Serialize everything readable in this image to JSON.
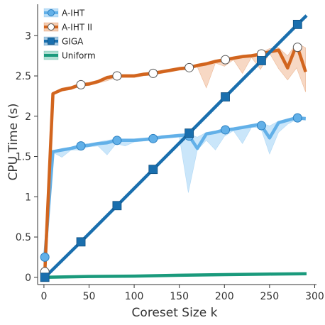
{
  "chart_data": {
    "type": "line",
    "xlabel": "Coreset Size k",
    "ylabel": "CPU Time (s)",
    "xlim": [
      -7,
      302
    ],
    "ylim": [
      -0.09,
      3.39
    ],
    "xticks": [
      0,
      50,
      100,
      150,
      200,
      250,
      300
    ],
    "xtick_labels": [
      "0",
      "50",
      "100",
      "150",
      "200",
      "250",
      "300"
    ],
    "yticks": [
      0,
      0.5,
      1,
      1.5,
      2,
      2.5,
      3
    ],
    "ytick_labels": [
      "0",
      "0.5",
      "1",
      "1.5",
      "2",
      "2.5",
      "3"
    ],
    "grid": false,
    "legend_position": "top-left",
    "series": [
      {
        "name": "A-IHT",
        "color": "#62b0e8",
        "band_color": "#9fd2f5",
        "marker": "circle-filled",
        "x": [
          1,
          10,
          20,
          30,
          40,
          50,
          60,
          70,
          80,
          90,
          100,
          110,
          120,
          130,
          140,
          150,
          160,
          170,
          180,
          190,
          200,
          210,
          220,
          230,
          240,
          250,
          260,
          270,
          280,
          290
        ],
        "y": [
          0.25,
          1.56,
          1.58,
          1.6,
          1.63,
          1.64,
          1.66,
          1.67,
          1.7,
          1.7,
          1.7,
          1.71,
          1.72,
          1.74,
          1.75,
          1.76,
          1.77,
          1.6,
          1.78,
          1.8,
          1.83,
          1.84,
          1.86,
          1.88,
          1.9,
          1.73,
          1.92,
          1.95,
          1.98,
          1.97
        ],
        "lower": [
          0.25,
          1.55,
          1.49,
          1.58,
          1.58,
          1.62,
          1.63,
          1.52,
          1.66,
          1.63,
          1.68,
          1.69,
          1.7,
          1.72,
          1.73,
          1.74,
          1.05,
          1.58,
          1.7,
          1.58,
          1.75,
          1.82,
          1.66,
          1.86,
          1.86,
          1.53,
          1.8,
          1.9,
          1.96,
          1.95
        ],
        "upper": [
          0.26,
          1.57,
          1.6,
          1.62,
          1.65,
          1.66,
          1.68,
          1.7,
          1.72,
          1.72,
          1.72,
          1.73,
          1.74,
          1.76,
          1.77,
          1.78,
          1.78,
          1.74,
          1.8,
          1.82,
          1.85,
          1.86,
          1.88,
          1.9,
          1.92,
          1.88,
          1.94,
          1.97,
          2.0,
          1.99
        ],
        "marker_x": [
          1,
          41,
          81,
          121,
          161,
          201,
          241,
          281
        ]
      },
      {
        "name": "A-IHT II",
        "color": "#d2651e",
        "band_color": "#f0b893",
        "marker": "circle-open",
        "x": [
          1,
          10,
          20,
          30,
          40,
          50,
          60,
          70,
          80,
          90,
          100,
          110,
          120,
          130,
          140,
          150,
          160,
          170,
          180,
          190,
          200,
          210,
          220,
          230,
          240,
          250,
          260,
          270,
          280,
          290
        ],
        "y": [
          0.07,
          2.28,
          2.33,
          2.35,
          2.39,
          2.4,
          2.43,
          2.48,
          2.5,
          2.5,
          2.5,
          2.52,
          2.53,
          2.55,
          2.57,
          2.59,
          2.6,
          2.63,
          2.65,
          2.68,
          2.7,
          2.72,
          2.74,
          2.75,
          2.77,
          2.8,
          2.82,
          2.6,
          2.89,
          2.55
        ],
        "lower": [
          0.07,
          2.27,
          2.31,
          2.33,
          2.37,
          2.38,
          2.41,
          2.44,
          2.48,
          2.48,
          2.48,
          2.5,
          2.51,
          2.53,
          2.55,
          2.57,
          2.58,
          2.61,
          2.35,
          2.66,
          2.62,
          2.7,
          2.53,
          2.73,
          2.58,
          2.78,
          2.59,
          2.45,
          2.6,
          2.3
        ],
        "upper": [
          0.08,
          2.29,
          2.35,
          2.37,
          2.41,
          2.42,
          2.45,
          2.5,
          2.52,
          2.52,
          2.52,
          2.54,
          2.55,
          2.57,
          2.59,
          2.61,
          2.62,
          2.65,
          2.67,
          2.7,
          2.72,
          2.74,
          2.76,
          2.77,
          2.79,
          2.84,
          2.85,
          2.75,
          2.91,
          2.85
        ],
        "marker_x": [
          1,
          41,
          81,
          121,
          161,
          201,
          241,
          281
        ]
      },
      {
        "name": "GIGA",
        "color": "#1a6fae",
        "band_color": "#7fb2d6",
        "marker": "square",
        "x": [
          1,
          41,
          81,
          121,
          161,
          201,
          241,
          281,
          291
        ],
        "y": [
          0.0,
          0.44,
          0.89,
          1.34,
          1.79,
          2.24,
          2.69,
          3.14,
          3.25
        ],
        "marker_x": [
          1,
          41,
          81,
          121,
          161,
          201,
          241,
          281
        ]
      },
      {
        "name": "Uniform",
        "color": "#1a9a7c",
        "band_color": "#8ed1c0",
        "marker": "none",
        "x": [
          1,
          50,
          100,
          150,
          200,
          250,
          291
        ],
        "y": [
          0.0,
          0.01,
          0.015,
          0.025,
          0.033,
          0.04,
          0.045
        ]
      }
    ]
  }
}
